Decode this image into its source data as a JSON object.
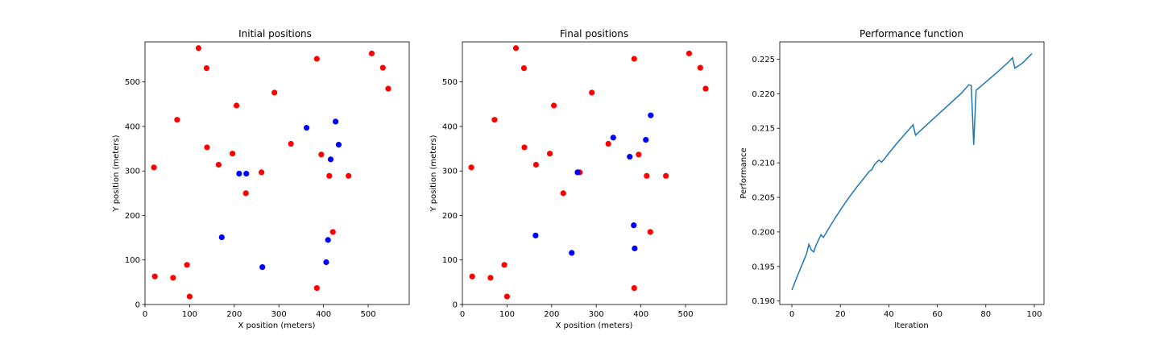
{
  "chart_data": [
    {
      "type": "scatter",
      "title": "Initial positions",
      "xlabel": "X position (meters)",
      "ylabel": "Y position (meters)",
      "xlim": [
        0,
        592
      ],
      "ylim": [
        0,
        590
      ],
      "xticks": [
        0,
        100,
        200,
        300,
        400,
        500
      ],
      "yticks": [
        0,
        100,
        200,
        300,
        400,
        500
      ],
      "grid": false,
      "series": [
        {
          "color": "#ff0000",
          "points": [
            [
              120,
              576
            ],
            [
              138,
              531
            ],
            [
              72,
              415
            ],
            [
              205,
              447
            ],
            [
              290,
              476
            ],
            [
              385,
              552
            ],
            [
              508,
              564
            ],
            [
              533,
              532
            ],
            [
              545,
              485
            ],
            [
              20,
              308
            ],
            [
              139,
              353
            ],
            [
              165,
              314
            ],
            [
              196,
              339
            ],
            [
              327,
              361
            ],
            [
              395,
              337
            ],
            [
              413,
              289
            ],
            [
              456,
              289
            ],
            [
              226,
              250
            ],
            [
              421,
              163
            ],
            [
              94,
              89
            ],
            [
              22,
              63
            ],
            [
              63,
              60
            ],
            [
              100,
              18
            ],
            [
              385,
              37
            ],
            [
              261,
              297
            ]
          ]
        },
        {
          "color": "#0000ff",
          "points": [
            [
              427,
              411
            ],
            [
              362,
              397
            ],
            [
              434,
              359
            ],
            [
              416,
              326
            ],
            [
              211,
              294
            ],
            [
              227,
              294
            ],
            [
              172,
              151
            ],
            [
              410,
              145
            ],
            [
              406,
              95
            ],
            [
              263,
              84
            ]
          ]
        }
      ]
    },
    {
      "type": "scatter",
      "title": "Final positions",
      "xlabel": "X position (meters)",
      "ylabel": "Y position (meters)",
      "xlim": [
        0,
        592
      ],
      "ylim": [
        0,
        590
      ],
      "xticks": [
        0,
        100,
        200,
        300,
        400,
        500
      ],
      "yticks": [
        0,
        100,
        200,
        300,
        400,
        500
      ],
      "grid": false,
      "series": [
        {
          "color": "#ff0000",
          "points": [
            [
              120,
              576
            ],
            [
              138,
              531
            ],
            [
              72,
              415
            ],
            [
              205,
              447
            ],
            [
              290,
              476
            ],
            [
              385,
              552
            ],
            [
              508,
              564
            ],
            [
              533,
              532
            ],
            [
              545,
              485
            ],
            [
              20,
              308
            ],
            [
              139,
              353
            ],
            [
              165,
              314
            ],
            [
              196,
              339
            ],
            [
              327,
              361
            ],
            [
              395,
              337
            ],
            [
              413,
              289
            ],
            [
              456,
              289
            ],
            [
              226,
              250
            ],
            [
              421,
              163
            ],
            [
              94,
              89
            ],
            [
              22,
              63
            ],
            [
              63,
              60
            ],
            [
              100,
              18
            ],
            [
              385,
              37
            ],
            [
              263,
              297
            ]
          ]
        },
        {
          "color": "#0000ff",
          "points": [
            [
              422,
              425
            ],
            [
              338,
              375
            ],
            [
              411,
              370
            ],
            [
              375,
              332
            ],
            [
              258,
              297
            ],
            [
              164,
              155
            ],
            [
              384,
              178
            ],
            [
              245,
              116
            ],
            [
              386,
              126
            ]
          ]
        }
      ]
    },
    {
      "type": "line",
      "title": "Performance function",
      "xlabel": "Iteration",
      "ylabel": "Performance",
      "xlim": [
        -5,
        104
      ],
      "ylim": [
        0.1895,
        0.2275
      ],
      "xticks": [
        0,
        20,
        40,
        60,
        80,
        100
      ],
      "yticks": [
        0.19,
        0.195,
        0.2,
        0.205,
        0.21,
        0.215,
        0.22,
        0.225
      ],
      "ytick_labels": [
        "0.190",
        "0.195",
        "0.200",
        "0.205",
        "0.210",
        "0.215",
        "0.220",
        "0.225"
      ],
      "grid": false,
      "series": [
        {
          "color": "#1f77b4",
          "points": [
            [
              0,
              0.1916
            ],
            [
              2,
              0.1934
            ],
            [
              4,
              0.1951
            ],
            [
              6,
              0.1968
            ],
            [
              7,
              0.1982
            ],
            [
              8,
              0.1974
            ],
            [
              9,
              0.1971
            ],
            [
              10,
              0.1981
            ],
            [
              12,
              0.1996
            ],
            [
              13,
              0.1992
            ],
            [
              15,
              0.2004
            ],
            [
              18,
              0.2021
            ],
            [
              21,
              0.2037
            ],
            [
              24,
              0.2052
            ],
            [
              27,
              0.2066
            ],
            [
              30,
              0.2079
            ],
            [
              32,
              0.2088
            ],
            [
              33,
              0.209
            ],
            [
              34,
              0.2097
            ],
            [
              35,
              0.2101
            ],
            [
              36,
              0.2104
            ],
            [
              37,
              0.2101
            ],
            [
              38,
              0.2105
            ],
            [
              40,
              0.2114
            ],
            [
              43,
              0.2127
            ],
            [
              46,
              0.2139
            ],
            [
              49,
              0.2151
            ],
            [
              50,
              0.2155
            ],
            [
              51,
              0.214
            ],
            [
              55,
              0.2153
            ],
            [
              60,
              0.2169
            ],
            [
              65,
              0.2185
            ],
            [
              70,
              0.2201
            ],
            [
              73,
              0.2213
            ],
            [
              74,
              0.2212
            ],
            [
              75,
              0.2126
            ],
            [
              76,
              0.2205
            ],
            [
              80,
              0.2217
            ],
            [
              85,
              0.2232
            ],
            [
              90,
              0.2248
            ],
            [
              91,
              0.2252
            ],
            [
              92,
              0.2237
            ],
            [
              95,
              0.2244
            ],
            [
              99,
              0.2258
            ]
          ]
        }
      ]
    }
  ]
}
